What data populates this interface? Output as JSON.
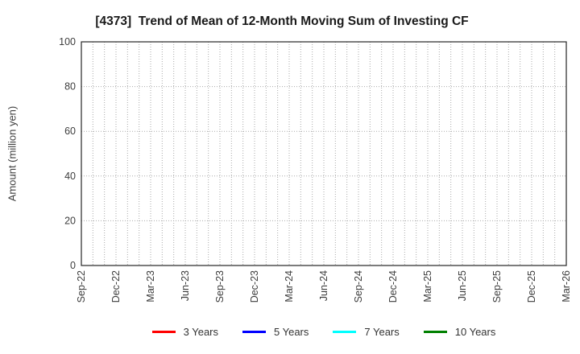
{
  "chart": {
    "title": "[4373]  Trend of Mean of 12-Month Moving Sum of Investing CF",
    "ylabel": "Amount (million yen)",
    "xlabel": ""
  },
  "chart_data": {
    "type": "line",
    "title": "[4373]  Trend of Mean of 12-Month Moving Sum of Investing CF",
    "xlabel": "",
    "ylabel": "Amount (million yen)",
    "ylim": [
      0,
      100
    ],
    "yticks": [
      0,
      20,
      40,
      60,
      80,
      100
    ],
    "x_tick_labels": [
      "Sep-22",
      "Dec-22",
      "Mar-23",
      "Jun-23",
      "Sep-23",
      "Dec-23",
      "Mar-24",
      "Jun-24",
      "Sep-24",
      "Dec-24",
      "Mar-25",
      "Jun-25",
      "Sep-25",
      "Dec-25",
      "Mar-26"
    ],
    "x_label_every_n_months": 3,
    "grid": "dotted",
    "grid_color": "#aaaaaa",
    "axis_color": "#262626",
    "legend_position": "bottom",
    "series": [
      {
        "name": "3 Years",
        "color": "#ff0000",
        "values": []
      },
      {
        "name": "5 Years",
        "color": "#0000ff",
        "values": []
      },
      {
        "name": "7 Years",
        "color": "#00ffff",
        "values": []
      },
      {
        "name": "10 Years",
        "color": "#008000",
        "values": []
      }
    ]
  }
}
